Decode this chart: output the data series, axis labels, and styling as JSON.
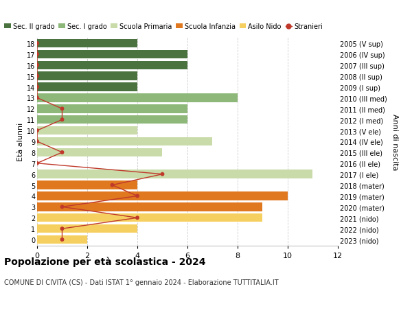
{
  "ages": [
    18,
    17,
    16,
    15,
    14,
    13,
    12,
    11,
    10,
    9,
    8,
    7,
    6,
    5,
    4,
    3,
    2,
    1,
    0
  ],
  "right_labels": [
    "2005 (V sup)",
    "2006 (IV sup)",
    "2007 (III sup)",
    "2008 (II sup)",
    "2009 (I sup)",
    "2010 (III med)",
    "2011 (II med)",
    "2012 (I med)",
    "2013 (V ele)",
    "2014 (IV ele)",
    "2015 (III ele)",
    "2016 (II ele)",
    "2017 (I ele)",
    "2018 (mater)",
    "2019 (mater)",
    "2020 (mater)",
    "2021 (nido)",
    "2022 (nido)",
    "2023 (nido)"
  ],
  "bar_values": [
    4,
    6,
    6,
    4,
    4,
    8,
    6,
    6,
    4,
    7,
    5,
    0,
    11,
    4,
    10,
    9,
    9,
    4,
    2
  ],
  "bar_colors": [
    "#4a7340",
    "#4a7340",
    "#4a7340",
    "#4a7340",
    "#4a7340",
    "#8db87a",
    "#8db87a",
    "#8db87a",
    "#c8dba8",
    "#c8dba8",
    "#c8dba8",
    "#c8dba8",
    "#c8dba8",
    "#e07820",
    "#e07820",
    "#e07820",
    "#f5d060",
    "#f5d060",
    "#f5d060"
  ],
  "stranieri_values": [
    0,
    0,
    0,
    0,
    0,
    0,
    1,
    1,
    0,
    0,
    1,
    0,
    5,
    3,
    4,
    1,
    4,
    1,
    1
  ],
  "stranieri_color": "#c0392b",
  "title": "Popolazione per età scolastica - 2024",
  "subtitle": "COMUNE DI CIVITA (CS) - Dati ISTAT 1° gennaio 2024 - Elaborazione TUTTITALIA.IT",
  "ylabel_left": "Età alunni",
  "ylabel_right": "Anni di nascita",
  "legend_labels": [
    "Sec. II grado",
    "Sec. I grado",
    "Scuola Primaria",
    "Scuola Infanzia",
    "Asilo Nido",
    "Stranieri"
  ],
  "legend_colors": [
    "#4a7340",
    "#8db87a",
    "#c8dba8",
    "#e07820",
    "#f5d060",
    "#c0392b"
  ],
  "xlim": [
    0,
    12
  ],
  "xticks": [
    0,
    2,
    4,
    6,
    8,
    10,
    12
  ],
  "bg_color": "#ffffff",
  "grid_color": "#cccccc"
}
